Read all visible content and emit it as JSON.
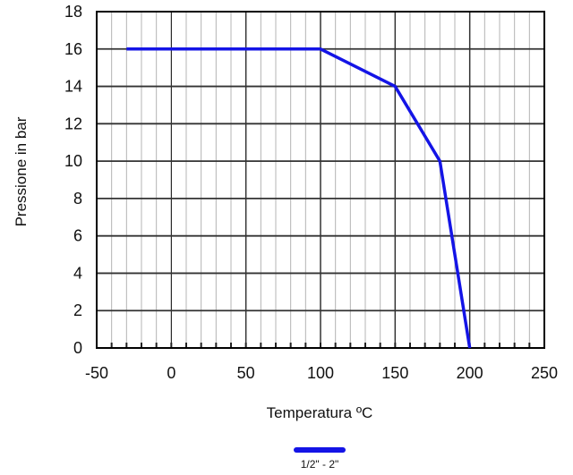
{
  "chart_data": {
    "type": "line",
    "xlabel": "Temperatura ºC",
    "ylabel": "Pressione in bar",
    "xlim": [
      -50,
      250
    ],
    "ylim": [
      0,
      18
    ],
    "x_ticks": [
      -50,
      0,
      50,
      100,
      150,
      200,
      250
    ],
    "y_ticks": [
      0,
      2,
      4,
      6,
      8,
      10,
      12,
      14,
      16,
      18
    ],
    "grid": true,
    "legend_position": "bottom-center",
    "series": [
      {
        "name": "1/2\" - 2\"",
        "color": "#1414e6",
        "x": [
          -30,
          100,
          150,
          180,
          200
        ],
        "y": [
          16,
          16,
          14,
          10,
          0
        ]
      }
    ]
  }
}
